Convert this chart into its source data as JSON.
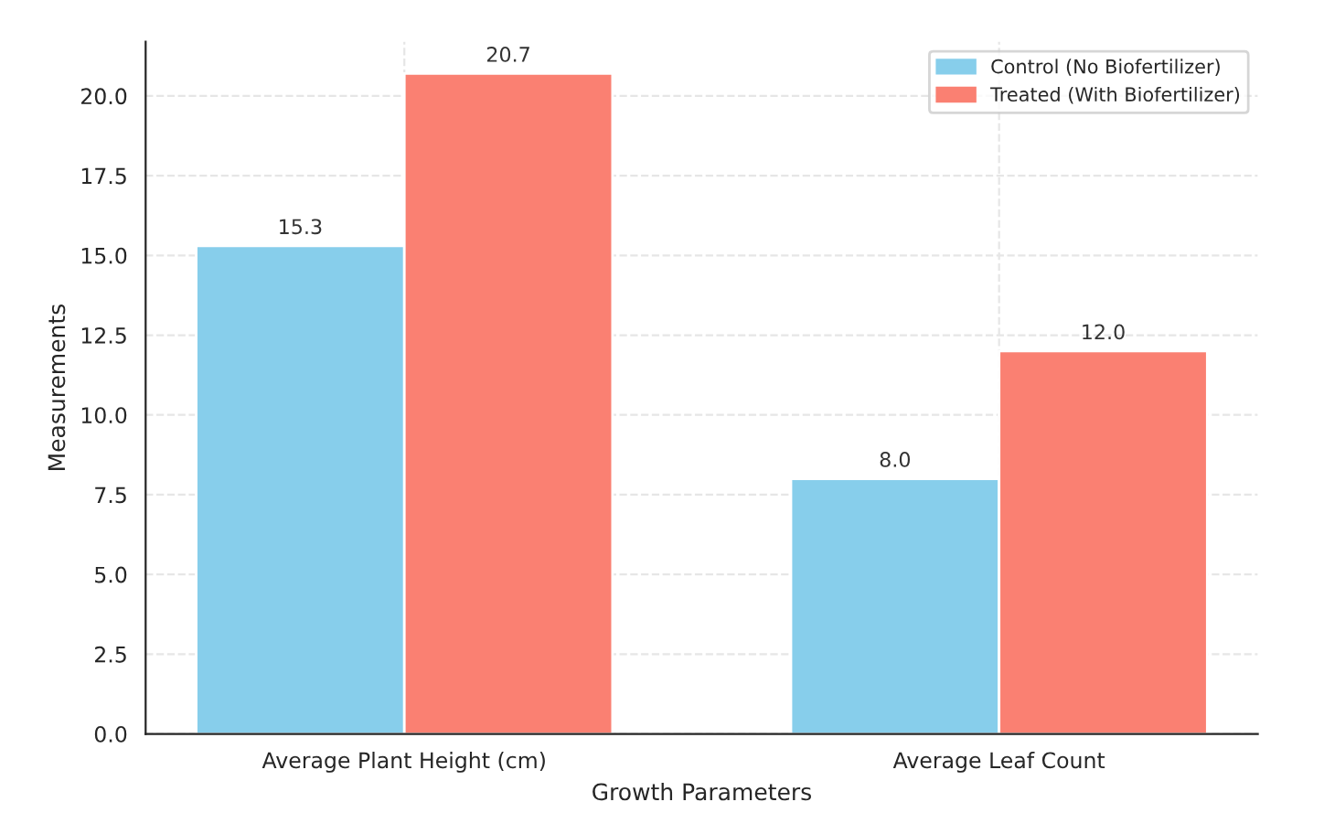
{
  "chart_data": {
    "type": "bar",
    "xlabel": "Growth Parameters",
    "ylabel": "Measurements",
    "categories": [
      "Average Plant Height (cm)",
      "Average Leaf Count"
    ],
    "series": [
      {
        "name": "Control (No Biofertilizer)",
        "color": "#87ceeb",
        "values": [
          15.3,
          8.0
        ],
        "value_labels": [
          "15.3",
          "8.0"
        ]
      },
      {
        "name": "Treated (With Biofertilizer)",
        "color": "#fa8072",
        "values": [
          20.7,
          12.0
        ],
        "value_labels": [
          "20.7",
          "12.0"
        ]
      }
    ],
    "ylim": [
      0,
      21.7
    ],
    "yticks": [
      {
        "value": 0,
        "label": "0.0"
      },
      {
        "value": 2.5,
        "label": "2.5"
      },
      {
        "value": 5,
        "label": "5.0"
      },
      {
        "value": 7.5,
        "label": "7.5"
      },
      {
        "value": 10,
        "label": "10.0"
      },
      {
        "value": 12.5,
        "label": "12.5"
      },
      {
        "value": 15,
        "label": "15.0"
      },
      {
        "value": 17.5,
        "label": "17.5"
      },
      {
        "value": 20,
        "label": "20.0"
      }
    ],
    "grid": true,
    "legend": "top right"
  }
}
